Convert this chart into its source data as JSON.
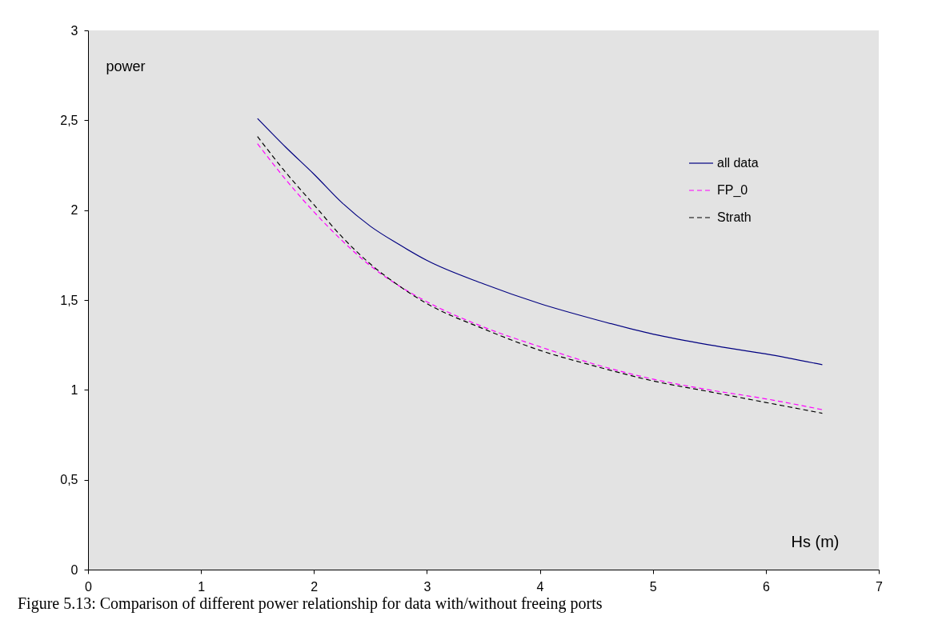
{
  "chart_data": {
    "type": "line",
    "xlabel": "Hs (m)",
    "ylabel": "power",
    "xlim": [
      0,
      7
    ],
    "xticks": [
      0,
      1,
      2,
      3,
      4,
      5,
      6,
      7
    ],
    "ylim": [
      0,
      3
    ],
    "yticks": [
      0,
      {
        "value": 0.5,
        "label": "0,5"
      },
      1,
      {
        "value": 1.5,
        "label": "1,5"
      },
      2,
      {
        "value": 2.5,
        "label": "2,5"
      },
      3
    ],
    "x": [
      1.5,
      1.75,
      2,
      2.25,
      2.5,
      2.75,
      3,
      3.5,
      4,
      4.5,
      5,
      5.5,
      6,
      6.5
    ],
    "series": [
      {
        "name": "all data",
        "color": "#000080",
        "line_style": "solid",
        "values": [
          2.51,
          2.35,
          2.2,
          2.04,
          1.91,
          1.81,
          1.72,
          1.59,
          1.48,
          1.39,
          1.31,
          1.25,
          1.2,
          1.14
        ]
      },
      {
        "name": "FP_0",
        "color": "#ff00ff",
        "line_style": "dashed",
        "values": [
          2.37,
          2.17,
          1.99,
          1.83,
          1.69,
          1.58,
          1.49,
          1.35,
          1.24,
          1.14,
          1.06,
          1.0,
          0.95,
          0.89
        ]
      },
      {
        "name": "Strath",
        "color": "#000000",
        "line_style": "dashed",
        "values": [
          2.41,
          2.21,
          2.03,
          1.85,
          1.7,
          1.58,
          1.48,
          1.34,
          1.22,
          1.13,
          1.05,
          0.99,
          0.93,
          0.87
        ]
      }
    ],
    "grid": false,
    "legend": "top right",
    "annotations": [
      "Figure 5.13:  Comparison of different power relationship for data with/without freeing ports"
    ]
  }
}
